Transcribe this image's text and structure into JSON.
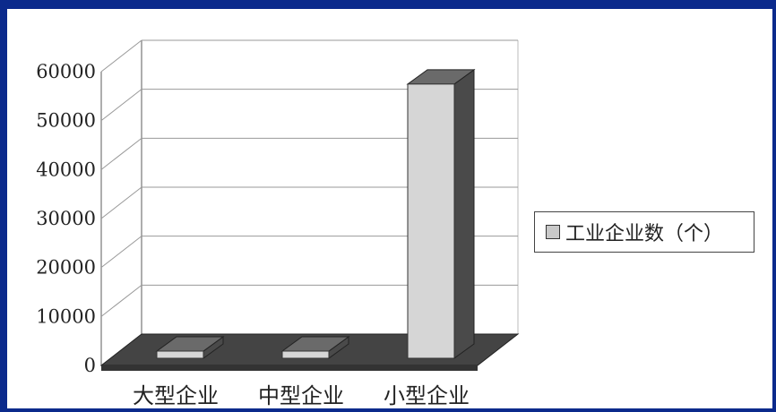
{
  "chart_data": {
    "type": "bar",
    "categories": [
      "大型企业",
      "中型企业",
      "小型企业"
    ],
    "series": [
      {
        "name": "工业企业数（个）",
        "values": [
          600,
          500,
          56000
        ]
      }
    ],
    "ylim": [
      0,
      60000
    ],
    "yticks": [
      0,
      10000,
      20000,
      30000,
      40000,
      50000,
      60000
    ],
    "grid": true,
    "legend_position": "right",
    "three_d": true
  },
  "colors": {
    "background": "#0b2a8c",
    "bar_front": "#d6d6d6",
    "bar_side": "#4a4a4a",
    "bar_top": "#6a6a6a",
    "floor": "#444444"
  }
}
